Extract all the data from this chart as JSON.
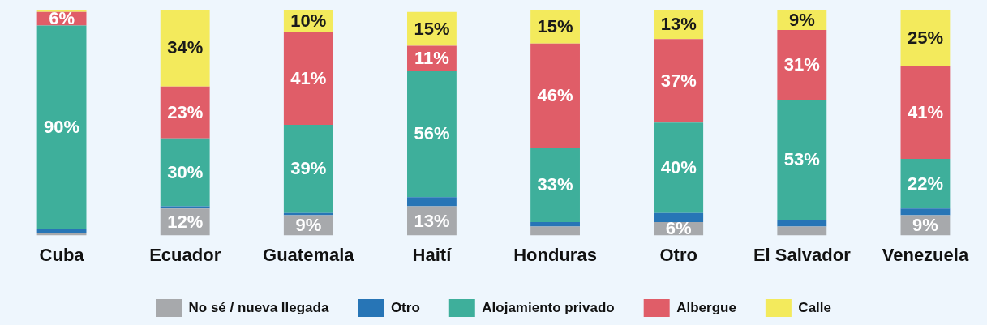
{
  "chart_data": {
    "type": "bar",
    "stacked": true,
    "categories": [
      "Cuba",
      "Ecuador",
      "Guatemala",
      "Haití",
      "Honduras",
      "Otro",
      "El Salvador",
      "Venezuela"
    ],
    "ylim": [
      0,
      100
    ],
    "tick_labels": "x",
    "legend": "bottom",
    "series": [
      {
        "name": "No sé / nueva llegada",
        "color": "#a7a9ac",
        "values": [
          1,
          12,
          9,
          13,
          4,
          6,
          4,
          9
        ],
        "value_labels": [
          null,
          "12%",
          "9%",
          "13%",
          null,
          "6%",
          null,
          "9%"
        ]
      },
      {
        "name": "Otro",
        "color": "#2775b6",
        "values": [
          2,
          1,
          1,
          4,
          2,
          4,
          3,
          3
        ],
        "value_labels": [
          null,
          null,
          null,
          null,
          null,
          null,
          null,
          null
        ]
      },
      {
        "name": "Alojamiento privado",
        "color": "#3eaf9b",
        "values": [
          90,
          30,
          39,
          56,
          33,
          40,
          53,
          22
        ],
        "value_labels": [
          "90%",
          "30%",
          "39%",
          "56%",
          "33%",
          "40%",
          "53%",
          "22%"
        ]
      },
      {
        "name": "Albergue",
        "color": "#e05d68",
        "values": [
          6,
          23,
          41,
          11,
          46,
          37,
          31,
          41
        ],
        "value_labels": [
          "6%",
          "23%",
          "41%",
          "11%",
          "46%",
          "37%",
          "31%",
          "41%"
        ]
      },
      {
        "name": "Calle",
        "color": "#f3ea5c",
        "values": [
          1,
          34,
          10,
          15,
          15,
          13,
          9,
          25
        ],
        "value_labels": [
          null,
          "34%",
          "10%",
          "15%",
          "15%",
          "13%",
          "9%",
          "25%"
        ]
      }
    ]
  }
}
